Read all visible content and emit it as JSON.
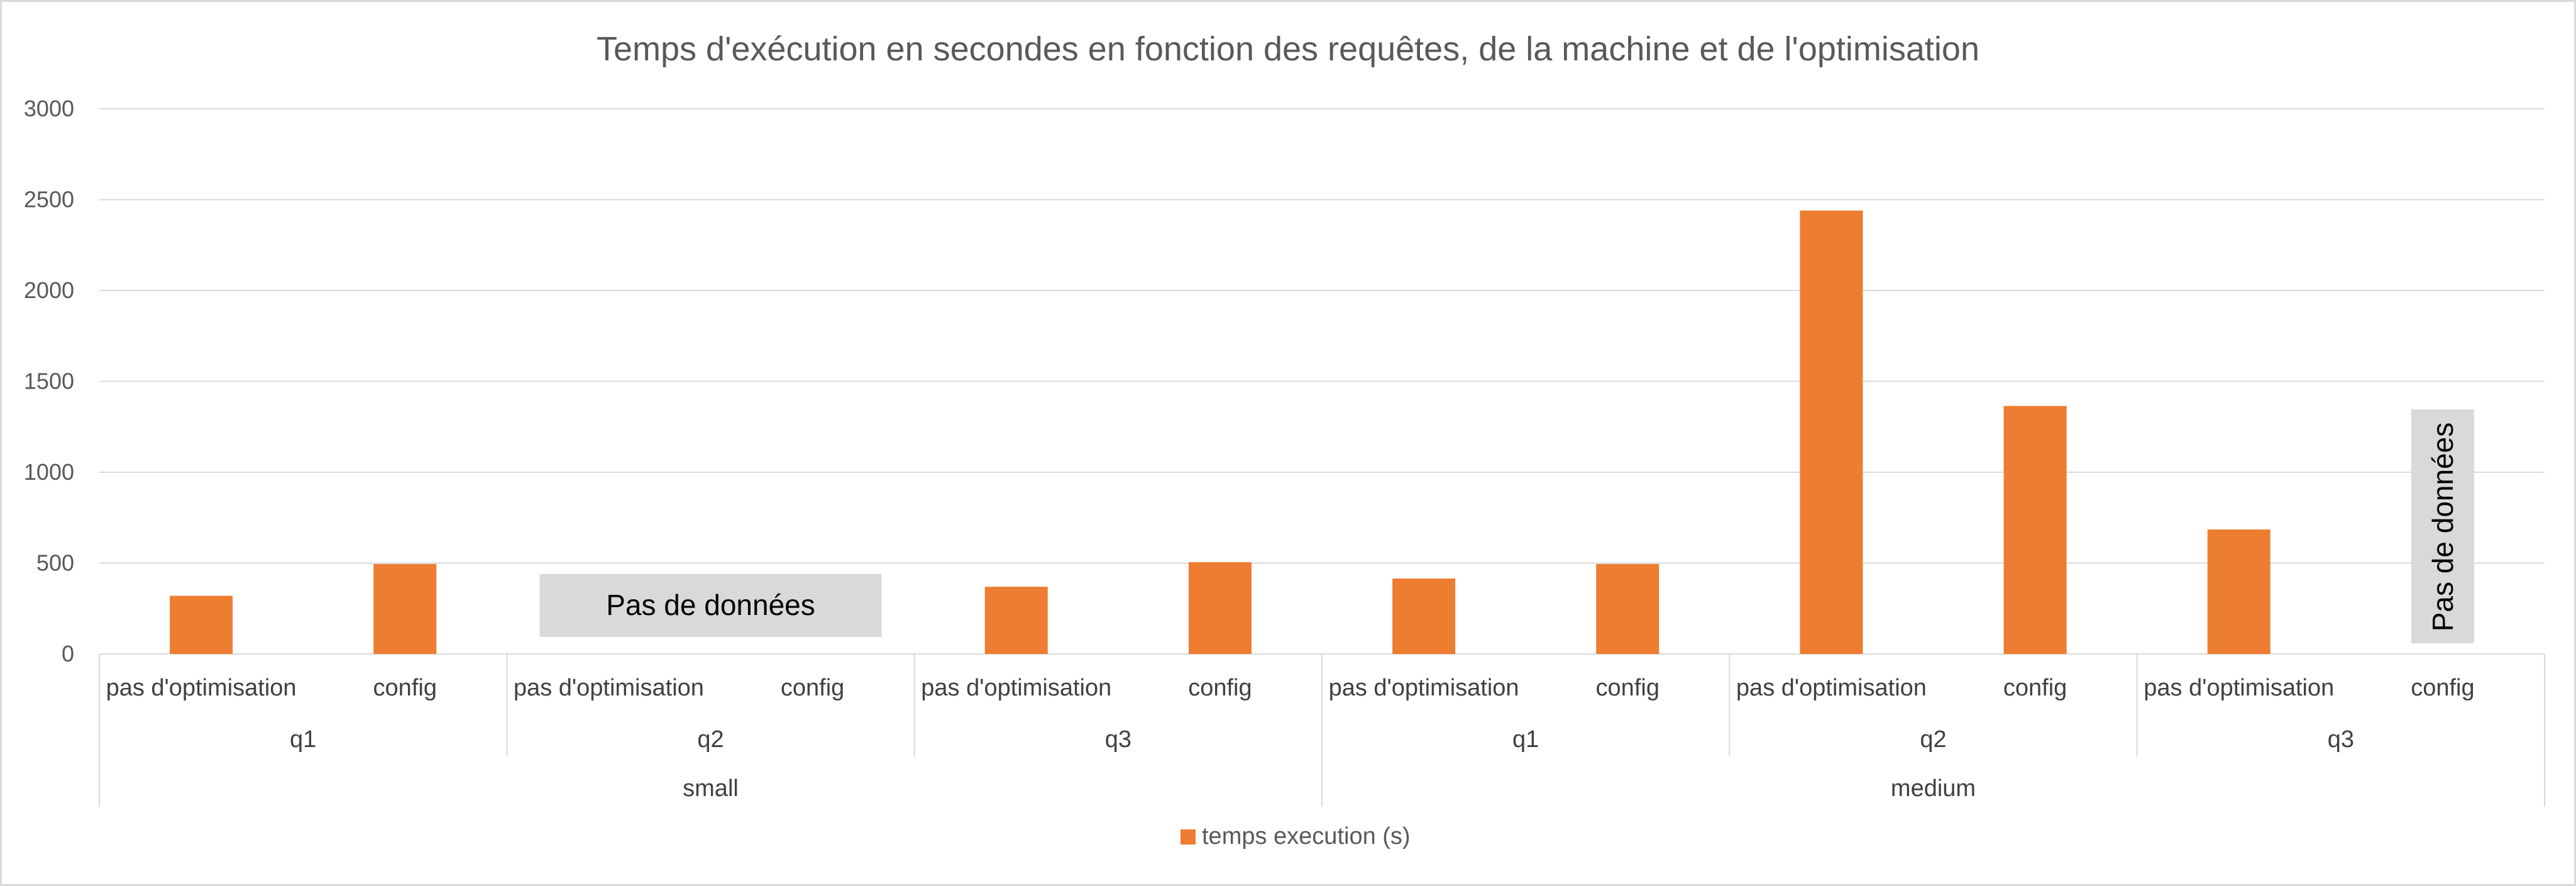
{
  "chart_data": {
    "type": "bar",
    "title": "Temps d'exécution en secondes en fonction des requêtes, de la machine et de l'optimisation",
    "xlabel": "",
    "ylabel": "",
    "ylim": [
      0,
      3000
    ],
    "yticks": [
      0,
      500,
      1000,
      1500,
      2000,
      2500,
      3000
    ],
    "grid": true,
    "legend_position": "bottom",
    "color": "#ED7D31",
    "groups": [
      {
        "label": "small",
        "subgroups": [
          {
            "label": "q1",
            "categories": [
              "pas d'optimisation",
              "config"
            ],
            "values": [
              320,
              495
            ]
          },
          {
            "label": "q2",
            "categories": [
              "pas d'optimisation",
              "config"
            ],
            "values": [
              null,
              null
            ]
          },
          {
            "label": "q3",
            "categories": [
              "pas d'optimisation",
              "config"
            ],
            "values": [
              370,
              505
            ]
          }
        ]
      },
      {
        "label": "medium",
        "subgroups": [
          {
            "label": "q1",
            "categories": [
              "pas d'optimisation",
              "config"
            ],
            "values": [
              415,
              495
            ]
          },
          {
            "label": "q2",
            "categories": [
              "pas d'optimisation",
              "config"
            ],
            "values": [
              2440,
              1365
            ]
          },
          {
            "label": "q3",
            "categories": [
              "pas d'optimisation",
              "config"
            ],
            "values": [
              685,
              null
            ]
          }
        ]
      }
    ],
    "series": [
      {
        "name": "temps execution (s)"
      }
    ],
    "annotations": [
      {
        "text": "Pas de données",
        "target": "small/q2",
        "orientation": "horizontal"
      },
      {
        "text": "Pas de données",
        "target": "medium/q3/config",
        "orientation": "vertical"
      }
    ]
  }
}
